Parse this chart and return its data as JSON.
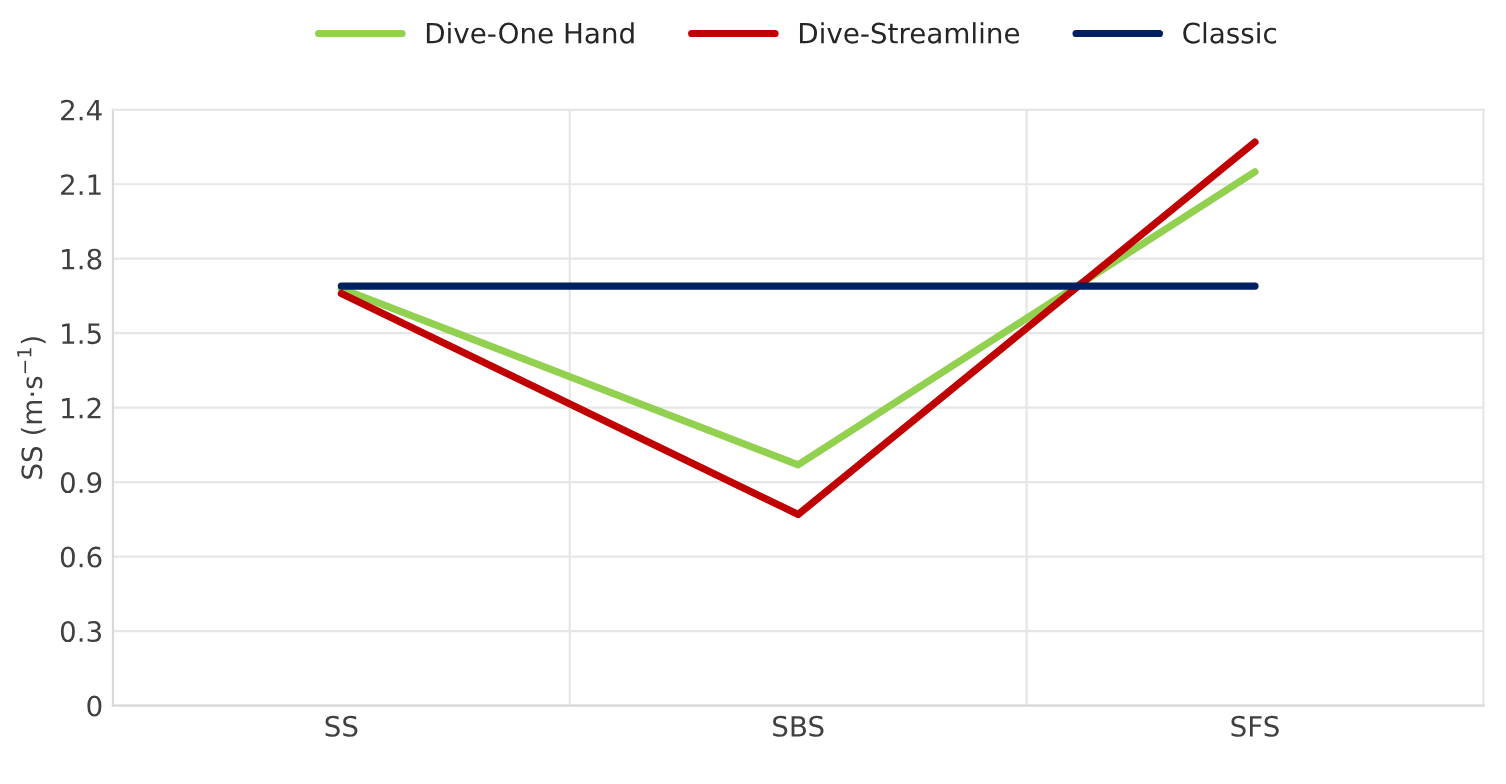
{
  "chart_data": {
    "type": "line",
    "ylabel": "SS (m·s$^{−1}$)",
    "categories": [
      "SS",
      "SBS",
      "SFS"
    ],
    "series": [
      {
        "name": "Dive-One Hand",
        "color": "#92d050",
        "values": [
          1.68,
          0.97,
          2.15
        ]
      },
      {
        "name": "Dive-Streamline",
        "color": "#c00000",
        "values": [
          1.66,
          0.77,
          2.27
        ]
      },
      {
        "name": "Classic",
        "color": "#002060",
        "values": [
          1.69,
          1.69,
          1.69
        ]
      }
    ],
    "ylim": [
      0,
      2.4
    ],
    "yticks": [
      0,
      0.3,
      0.6,
      0.9,
      1.2,
      1.5,
      1.8,
      2.1,
      2.4
    ],
    "grid": true,
    "legend": "top",
    "marker": "none",
    "line_style": "solid"
  }
}
